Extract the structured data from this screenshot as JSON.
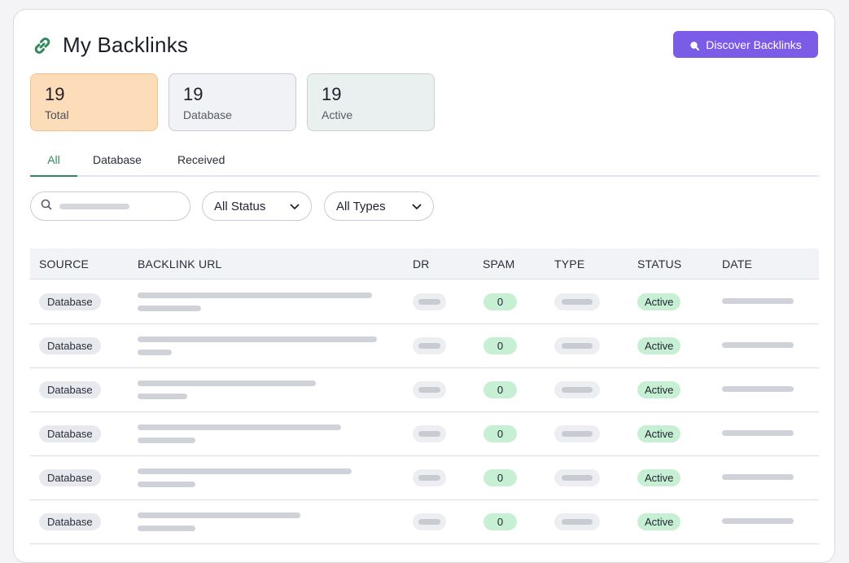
{
  "header": {
    "title": "My Backlinks",
    "discover_label": "Discover Backlinks"
  },
  "stats": [
    {
      "value": "19",
      "label": "Total"
    },
    {
      "value": "19",
      "label": "Database"
    },
    {
      "value": "19",
      "label": "Active"
    }
  ],
  "tabs": [
    "All",
    "Database",
    "Received"
  ],
  "filters": {
    "status": "All Status",
    "types": "All Types"
  },
  "table": {
    "columns": [
      "SOURCE",
      "BACKLINK URL",
      "DR",
      "SPAM",
      "TYPE",
      "STATUS",
      "DATE"
    ],
    "rows": [
      {
        "source": "Database",
        "spam": "0",
        "status": "Active"
      },
      {
        "source": "Database",
        "spam": "0",
        "status": "Active"
      },
      {
        "source": "Database",
        "spam": "0",
        "status": "Active"
      },
      {
        "source": "Database",
        "spam": "0",
        "status": "Active"
      },
      {
        "source": "Database",
        "spam": "0",
        "status": "Active"
      },
      {
        "source": "Database",
        "spam": "0",
        "status": "Active"
      }
    ]
  },
  "colors": {
    "accent": "#7b5ce6",
    "tab_active": "#2f8a5b",
    "success_bg": "#c6efd3",
    "total_bg": "#fddcba"
  },
  "icons": {
    "logo": "link-icon",
    "discover": "search-icon",
    "search": "search-icon",
    "dropdown": "chevron-down-icon"
  }
}
